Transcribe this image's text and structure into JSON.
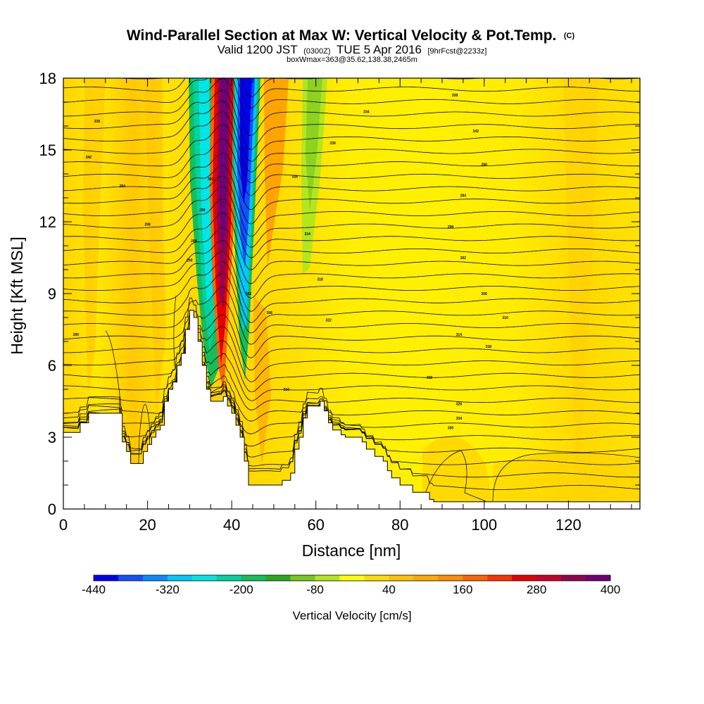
{
  "chart_data": {
    "type": "heatmap",
    "title": "Wind-Parallel Section at Max W: Vertical Velocity & Pot.Temp.",
    "title_mark": "(C)",
    "subtitle": {
      "valid": "Valid 1200 JST",
      "zulu": "(0300Z)",
      "date": "TUE 5 Apr 2016",
      "forecast": "[9hrFcst@2233z]"
    },
    "box_info": "boxWmax=363@35.62,138.38,2465m",
    "xlabel": "Distance [nm]",
    "ylabel": "Height [Kft MSL]",
    "xlim": [
      0,
      137
    ],
    "ylim": [
      0,
      18
    ],
    "x_ticks": [
      "0",
      "20",
      "40",
      "60",
      "80",
      "100",
      "120"
    ],
    "x_tick_values": [
      0,
      20,
      40,
      60,
      80,
      100,
      120
    ],
    "y_ticks": [
      "0",
      "3",
      "6",
      "9",
      "12",
      "15",
      "18"
    ],
    "y_tick_values": [
      0,
      3,
      6,
      9,
      12,
      15,
      18
    ],
    "colorbar": {
      "title": "Vertical Velocity [cm/s]",
      "labels": [
        "-440",
        "-320",
        "-200",
        "-80",
        "40",
        "160",
        "280",
        "400"
      ],
      "colors": [
        "#0000f0",
        "#1450ff",
        "#0a8cff",
        "#00c8ff",
        "#00e6e6",
        "#00d2a0",
        "#14be5a",
        "#28aa1e",
        "#78c81e",
        "#b4e61e",
        "#ffff00",
        "#ffdc00",
        "#ffc300",
        "#ffaa00",
        "#ff8c00",
        "#ff6400",
        "#ff3200",
        "#e60000",
        "#c80028",
        "#960050",
        "#6e0078"
      ]
    },
    "terrain_kft": [
      [
        0,
        3.2
      ],
      [
        3,
        3.2
      ],
      [
        4,
        3.6
      ],
      [
        6,
        4.0
      ],
      [
        13,
        4.0
      ],
      [
        14,
        2.8
      ],
      [
        15,
        2.4
      ],
      [
        16,
        1.9
      ],
      [
        18,
        1.9
      ],
      [
        19,
        2.4
      ],
      [
        20,
        2.7
      ],
      [
        21,
        3.0
      ],
      [
        22,
        3.3
      ],
      [
        23,
        3.5
      ],
      [
        24,
        4.5
      ],
      [
        25,
        5.0
      ],
      [
        26,
        5.3
      ],
      [
        27,
        6.0
      ],
      [
        28,
        6.5
      ],
      [
        29,
        7.5
      ],
      [
        30,
        8.3
      ],
      [
        31,
        8.0
      ],
      [
        32,
        7.0
      ],
      [
        33,
        6.0
      ],
      [
        34,
        5.0
      ],
      [
        35,
        4.5
      ],
      [
        37,
        4.5
      ],
      [
        38,
        4.7
      ],
      [
        39,
        4.3
      ],
      [
        40,
        4.0
      ],
      [
        41,
        3.5
      ],
      [
        42,
        3.0
      ],
      [
        43,
        2.0
      ],
      [
        44,
        1.0
      ],
      [
        51,
        1.0
      ],
      [
        52,
        1.2
      ],
      [
        54,
        1.5
      ],
      [
        55,
        2.5
      ],
      [
        56,
        3.0
      ],
      [
        57,
        3.8
      ],
      [
        58,
        4.3
      ],
      [
        61,
        4.5
      ],
      [
        62,
        4.1
      ],
      [
        63,
        3.6
      ],
      [
        64,
        3.3
      ],
      [
        66,
        3.1
      ],
      [
        67,
        3.0
      ],
      [
        70,
        3.0
      ],
      [
        71,
        2.8
      ],
      [
        72,
        2.5
      ],
      [
        74,
        2.2
      ],
      [
        76,
        2.0
      ],
      [
        77,
        1.6
      ],
      [
        78,
        1.3
      ],
      [
        80,
        1.0
      ],
      [
        83,
        0.7
      ],
      [
        87,
        0.4
      ],
      [
        88,
        0.3
      ],
      [
        137,
        0.3
      ]
    ],
    "theta_labels": [
      "290",
      "294",
      "298",
      "302",
      "306",
      "310",
      "314",
      "318",
      "322",
      "326",
      "330",
      "334",
      "338",
      "342"
    ]
  }
}
